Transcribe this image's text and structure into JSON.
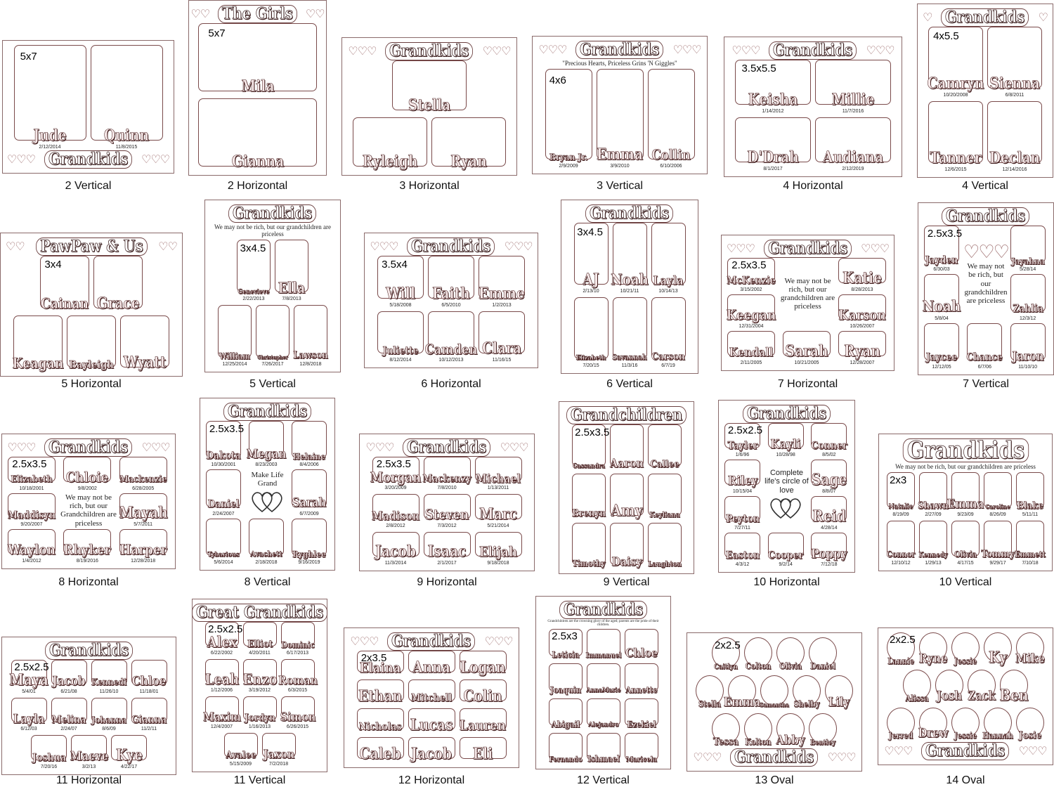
{
  "colors": {
    "outline": "#7a4a4a",
    "name_fill": "#f6e8e8",
    "heart": "#9a6868"
  },
  "panels": [
    {
      "caption": "2 Vertical",
      "title": "Grandkids",
      "hearts": 3,
      "size": "5x7",
      "slots": [
        {
          "name": "Jude",
          "date": "2/12/2014"
        },
        {
          "name": "Quinn",
          "date": "11/8/2015"
        }
      ]
    },
    {
      "caption": "2 Horizontal",
      "title": "The Girls",
      "hearts": 2,
      "size": "5x7",
      "slots": [
        {
          "name": "Mila"
        },
        {
          "name": "Gianna"
        }
      ]
    },
    {
      "caption": "3 Horizontal",
      "title": "Grandkids",
      "hearts": 3,
      "slots": [
        {
          "name": "Stella"
        },
        {
          "name": "Ryleigh"
        },
        {
          "name": "Ryan"
        }
      ]
    },
    {
      "caption": "3 Vertical",
      "title": "Grandkids",
      "hearts": 3,
      "quote": "\"Precious Hearts, Priceless Grins 'N Giggles\"",
      "size": "4x6",
      "slots": [
        {
          "name": "Bryan Jr.",
          "date": "2/9/2009"
        },
        {
          "name": "Emma",
          "date": "3/9/2010"
        },
        {
          "name": "Collin",
          "date": "6/10/2006"
        }
      ]
    },
    {
      "caption": "4 Horizontal",
      "title": "Grandkids",
      "hearts": 3,
      "size": "3.5x5.5",
      "slots": [
        {
          "name": "Keisha",
          "date": "1/14/2012"
        },
        {
          "name": "Millie",
          "date": "11/7/2016"
        },
        {
          "name": "D'Drah",
          "date": "8/1/2017"
        },
        {
          "name": "Audiana",
          "date": "2/12/2019"
        }
      ]
    },
    {
      "caption": "4 Vertical",
      "title": "Grandkids",
      "hearts": 1,
      "size": "4x5.5",
      "slots": [
        {
          "name": "Camryn",
          "date": "10/20/2008"
        },
        {
          "name": "Sienna",
          "date": "6/8/2011"
        },
        {
          "name": "Tanner",
          "date": "12/6/2015"
        },
        {
          "name": "Declan",
          "date": "12/14/2016"
        }
      ]
    },
    {
      "caption": "5 Horizontal",
      "title": "PawPaw & Us",
      "hearts": 2,
      "size": "3x4",
      "slots": [
        {
          "name": "Cainan"
        },
        {
          "name": "Grace"
        },
        {
          "name": "Keagan"
        },
        {
          "name": "Bayleigh"
        },
        {
          "name": "Wyatt"
        }
      ]
    },
    {
      "caption": "5 Vertical",
      "title": "Grandkids",
      "hearts": 0,
      "quote": "We may not be rich, but our grandchildren are priceless",
      "size": "3x4.5",
      "slots": [
        {
          "name": "Genevieve",
          "date": "2/22/2013"
        },
        {
          "name": "Ella",
          "date": "7/8/2013"
        },
        {
          "name": "William",
          "date": "12/25/2014"
        },
        {
          "name": "Christopher",
          "date": "7/26/2017"
        },
        {
          "name": "Lawson",
          "date": "12/8/2018"
        }
      ]
    },
    {
      "caption": "6 Horizontal",
      "title": "Grandkids",
      "hearts": 3,
      "size": "3.5x4",
      "slots": [
        {
          "name": "Will",
          "date": "5/18/2008"
        },
        {
          "name": "Faith",
          "date": "6/5/2010"
        },
        {
          "name": "Emme",
          "date": "1/2/2013"
        },
        {
          "name": "Juliette",
          "date": "8/12/2014"
        },
        {
          "name": "Camden",
          "date": "10/12/2013"
        },
        {
          "name": "Clara",
          "date": "11/16/15"
        }
      ]
    },
    {
      "caption": "6 Vertical",
      "title": "Grandkids",
      "hearts": 0,
      "size": "3x4.5",
      "slots": [
        {
          "name": "AJ",
          "date": "2/13/10"
        },
        {
          "name": "Noah",
          "date": "10/21/11"
        },
        {
          "name": "Layla",
          "date": "10/14/13"
        },
        {
          "name": "Elizabeth",
          "date": "7/20/15"
        },
        {
          "name": "Savannah",
          "date": "11/3/16"
        },
        {
          "name": "Carson",
          "date": "6/7/19"
        }
      ]
    },
    {
      "caption": "7 Horizontal",
      "title": "Grandkids",
      "hearts": 3,
      "center_text": "We may not be rich, but our grandchildren are priceless",
      "size": "2.5x3.5",
      "slots": [
        {
          "name": "McKenzie",
          "date": "3/15/2002"
        },
        {
          "name": "Katie",
          "date": "8/28/2013"
        },
        {
          "name": "Keegan",
          "date": "12/31/2004"
        },
        {
          "name": "Karson",
          "date": "10/26/2007"
        },
        {
          "name": "Kendall",
          "date": "2/11/2005"
        },
        {
          "name": "Sarah",
          "date": "10/21/2005"
        },
        {
          "name": "Ryan",
          "date": "12/28/2007"
        }
      ]
    },
    {
      "caption": "7 Vertical",
      "title": "Grandkids",
      "hearts": 0,
      "center_hearts": 3,
      "center_text": "We may not be rich, but our grandchildren are priceless",
      "size": "2.5x3.5",
      "slots": [
        {
          "name": "Jayden",
          "date": "6/30/03"
        },
        {
          "name": "Jayahna",
          "date": "5/28/14"
        },
        {
          "name": "Noah",
          "date": "5/8/04"
        },
        {
          "name": "Zahlia",
          "date": "12/3/12"
        },
        {
          "name": "Jaycee",
          "date": "12/12/05"
        },
        {
          "name": "Chance",
          "date": "6/7/06"
        },
        {
          "name": "Jaron",
          "date": "11/10/10"
        }
      ]
    },
    {
      "caption": "8 Horizontal",
      "title": "Grandkids",
      "hearts": 3,
      "center_text": "We may not be rich, but our Grandchildren are priceless",
      "size": "2.5x3.5",
      "slots": [
        {
          "name": "Elizabeth",
          "date": "10/18/2001"
        },
        {
          "name": "Chloie",
          "date": "9/8/2002"
        },
        {
          "name": "Mackenzie",
          "date": "6/28/2005"
        },
        {
          "name": "Maddisyn",
          "date": "9/20/2007"
        },
        {
          "name": "Mayah",
          "date": "5/7/2011"
        },
        {
          "name": "Waylon",
          "date": "1/4/2012"
        },
        {
          "name": "Rhyker",
          "date": "8/19/2016"
        },
        {
          "name": "Harper",
          "date": "12/28/2018"
        }
      ]
    },
    {
      "caption": "8 Vertical",
      "title": "Grandkids",
      "hearts": 0,
      "center_text": "Make Life Grand",
      "center_icon": "two-hearts-icon",
      "size": "2.5x3.5",
      "slots": [
        {
          "name": "Dakota",
          "date": "10/30/2001"
        },
        {
          "name": "Megan",
          "date": "8/23/2003"
        },
        {
          "name": "Helaine",
          "date": "8/4/2006"
        },
        {
          "name": "Daniel",
          "date": "2/24/2007"
        },
        {
          "name": "Sarah",
          "date": "6/7/2009"
        },
        {
          "name": "Tybarious",
          "date": "5/6/2014"
        },
        {
          "name": "Avachett",
          "date": "2/18/2018"
        },
        {
          "name": "Ryghlee",
          "date": "9/16/2019"
        }
      ]
    },
    {
      "caption": "9 Horizontal",
      "title": "Grandkids",
      "hearts": 3,
      "size": "2.5x3.5",
      "slots": [
        {
          "name": "Morgan",
          "date": "3/20/2009"
        },
        {
          "name": "Mackenzy",
          "date": "7/8/2010"
        },
        {
          "name": "Michael",
          "date": "1/13/2011"
        },
        {
          "name": "Madison",
          "date": "2/8/2012"
        },
        {
          "name": "Steven",
          "date": "7/3/2012"
        },
        {
          "name": "Marc",
          "date": "5/21/2014"
        },
        {
          "name": "Jacob",
          "date": "11/3/2014"
        },
        {
          "name": "Isaac",
          "date": "2/1/2017"
        },
        {
          "name": "Elijah",
          "date": "9/18/2018"
        }
      ]
    },
    {
      "caption": "9 Vertical",
      "title": "Grandchildren",
      "hearts": 0,
      "size": "2.5x3.5",
      "slots": [
        {
          "name": "Cassandra"
        },
        {
          "name": "Aaron"
        },
        {
          "name": "Callee"
        },
        {
          "name": "Brenyn"
        },
        {
          "name": "Amy"
        },
        {
          "name": "Keyliana"
        },
        {
          "name": "Timothy"
        },
        {
          "name": "Daisy"
        },
        {
          "name": "Laughton"
        }
      ]
    },
    {
      "caption": "10 Horizontal",
      "title": "Grandkids",
      "hearts": 0,
      "center_text": "Complete life's circle of love",
      "center_icon": "two-hearts-icon",
      "size": "2.5x2.5",
      "slots": [
        {
          "name": "Tayler",
          "date": "1/6/96"
        },
        {
          "name": "Kayli",
          "date": "10/28/98"
        },
        {
          "name": "Conner",
          "date": "8/5/02"
        },
        {
          "name": "Riley",
          "date": "10/15/04"
        },
        {
          "name": "Sage",
          "date": "8/8/07"
        },
        {
          "name": "Peyton",
          "date": "7/27/11"
        },
        {
          "name": "Reid",
          "date": "4/28/14"
        },
        {
          "name": "Easton",
          "date": "4/3/12"
        },
        {
          "name": "Cooper",
          "date": "9/2/14"
        },
        {
          "name": "Poppy",
          "date": "7/12/18"
        }
      ]
    },
    {
      "caption": "10 Vertical",
      "title": "Grandkids",
      "hearts": 0,
      "quote": "We may not be rich, but our grandchildren are priceless",
      "size": "2x3",
      "slots": [
        {
          "name": "Natalie",
          "date": "8/19/09"
        },
        {
          "name": "Shawn",
          "date": "2/27/09"
        },
        {
          "name": "Emma",
          "date": "9/23/09"
        },
        {
          "name": "Caroline",
          "date": "8/26/09"
        },
        {
          "name": "Blake",
          "date": "5/11/11"
        },
        {
          "name": "Connor",
          "date": "12/10/12"
        },
        {
          "name": "Kennedy",
          "date": "1/29/13"
        },
        {
          "name": "Olivia",
          "date": "4/17/15"
        },
        {
          "name": "Tommy",
          "date": "9/29/17"
        },
        {
          "name": "Emmett",
          "date": "7/10/18"
        }
      ]
    },
    {
      "caption": "11 Horizontal",
      "title": "Grandkids",
      "hearts": 0,
      "size": "2.5x2.5",
      "slots": [
        {
          "name": "Maya",
          "date": "5/4/01"
        },
        {
          "name": "Jacob",
          "date": "6/21/08"
        },
        {
          "name": "Kennedi",
          "date": "11/26/10"
        },
        {
          "name": "Chloe",
          "date": "11/18/01"
        },
        {
          "name": "Layla",
          "date": "6/12/03"
        },
        {
          "name": "Melina",
          "date": "2/24/07"
        },
        {
          "name": "Johanna",
          "date": "8/6/09"
        },
        {
          "name": "Gianna",
          "date": "11/2/11"
        },
        {
          "name": "Joshua",
          "date": "7/20/16"
        },
        {
          "name": "Maeve",
          "date": "3/2/13"
        },
        {
          "name": "Kye",
          "date": "4/22/17"
        }
      ]
    },
    {
      "caption": "11 Vertical",
      "title": "Great Grandkids",
      "hearts": 0,
      "size": "2.5x2.5",
      "slots": [
        {
          "name": "Alex",
          "date": "6/22/2002"
        },
        {
          "name": "Elliot",
          "date": "4/20/2011"
        },
        {
          "name": "Dominic",
          "date": "6/17/2013"
        },
        {
          "name": "Leah",
          "date": "1/12/2006"
        },
        {
          "name": "Enzo",
          "date": "3/19/2012"
        },
        {
          "name": "Roman",
          "date": "6/3/2015"
        },
        {
          "name": "Maxim",
          "date": "12/4/2007"
        },
        {
          "name": "Jordyn",
          "date": "1/16/2013"
        },
        {
          "name": "Simon",
          "date": "6/26/2015"
        },
        {
          "name": "Avalee",
          "date": "5/15/2009"
        },
        {
          "name": "Jaxon",
          "date": "7/2/2018"
        }
      ]
    },
    {
      "caption": "12 Horizontal",
      "title": "Grandkids",
      "hearts": 3,
      "size": "2x3.5",
      "slots": [
        {
          "name": "Elaina"
        },
        {
          "name": "Anna"
        },
        {
          "name": "Logan"
        },
        {
          "name": "Ethan"
        },
        {
          "name": "Mitchell"
        },
        {
          "name": "Colin"
        },
        {
          "name": "Nicholas"
        },
        {
          "name": "Lucas"
        },
        {
          "name": "Lauren"
        },
        {
          "name": "Caleb"
        },
        {
          "name": "Jacob"
        },
        {
          "name": "Eli"
        }
      ]
    },
    {
      "caption": "12 Vertical",
      "title": "Grandkids",
      "hearts": 0,
      "quote": "Grandchildren are the crowning glory of the aged; parents are the pride of their children.",
      "size": "2.5x3",
      "slots": [
        {
          "name": "Leticia"
        },
        {
          "name": "Immanuel"
        },
        {
          "name": "Chloe"
        },
        {
          "name": "Joaquin"
        },
        {
          "name": "AnnaMarie"
        },
        {
          "name": "Annette"
        },
        {
          "name": "Abigail"
        },
        {
          "name": "Alejandro"
        },
        {
          "name": "Ezekiel"
        },
        {
          "name": "Fernando"
        },
        {
          "name": "Ishmael"
        },
        {
          "name": "Maricela"
        }
      ]
    },
    {
      "caption": "13 Oval",
      "title": "Grandkids",
      "hearts": 3,
      "size": "2x2.5",
      "slots": [
        {
          "name": "Caitlyn"
        },
        {
          "name": "Colton"
        },
        {
          "name": "Olivia"
        },
        {
          "name": "Daniel"
        },
        {
          "name": "Stella"
        },
        {
          "name": "Emma"
        },
        {
          "name": "Samantha"
        },
        {
          "name": "Shelby"
        },
        {
          "name": "Lily"
        },
        {
          "name": "Tessa"
        },
        {
          "name": "Kolton"
        },
        {
          "name": "Abby"
        },
        {
          "name": "Bentley"
        }
      ]
    },
    {
      "caption": "14 Oval",
      "title": "Grandkids",
      "hearts": 3,
      "size": "2x2.5",
      "slots": [
        {
          "name": "Lannie"
        },
        {
          "name": "Ryne"
        },
        {
          "name": "Jessie"
        },
        {
          "name": "Ky"
        },
        {
          "name": "Mike"
        },
        {
          "name": "Alissa"
        },
        {
          "name": "Josh"
        },
        {
          "name": "Zack"
        },
        {
          "name": "Ben"
        },
        {
          "name": "Jerred"
        },
        {
          "name": "Drew"
        },
        {
          "name": "Jessie"
        },
        {
          "name": "Hannah"
        },
        {
          "name": "Josie"
        }
      ]
    }
  ]
}
